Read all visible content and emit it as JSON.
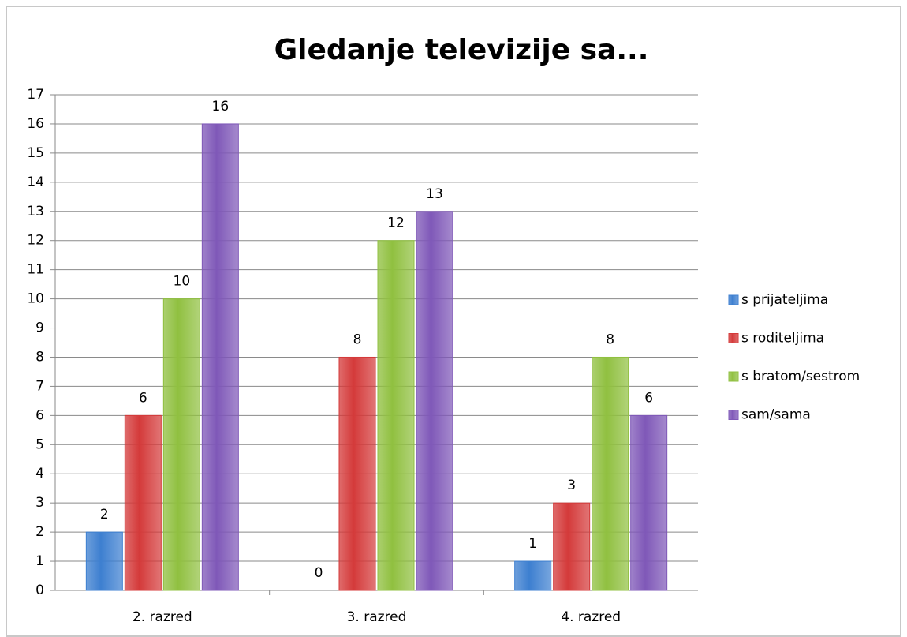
{
  "chart_data": {
    "type": "bar",
    "title": "Gledanje televizije sa...",
    "categories": [
      "2. razred",
      "3. razred",
      "4. razred"
    ],
    "series": [
      {
        "name": "s prijateljima",
        "color": "#3d7fd0",
        "values": [
          2,
          0,
          1
        ]
      },
      {
        "name": "s roditeljima",
        "color": "#d43a3a",
        "values": [
          6,
          8,
          3
        ]
      },
      {
        "name": "s bratom/sestrom",
        "color": "#90c040",
        "values": [
          10,
          12,
          8
        ]
      },
      {
        "name": "sam/sama",
        "color": "#7f58b8",
        "values": [
          16,
          13,
          6
        ]
      }
    ],
    "ylim": [
      0,
      17
    ],
    "yticks": [
      0,
      1,
      2,
      3,
      4,
      5,
      6,
      7,
      8,
      9,
      10,
      11,
      12,
      13,
      14,
      15,
      16,
      17
    ],
    "grid": true,
    "legend": "right"
  }
}
